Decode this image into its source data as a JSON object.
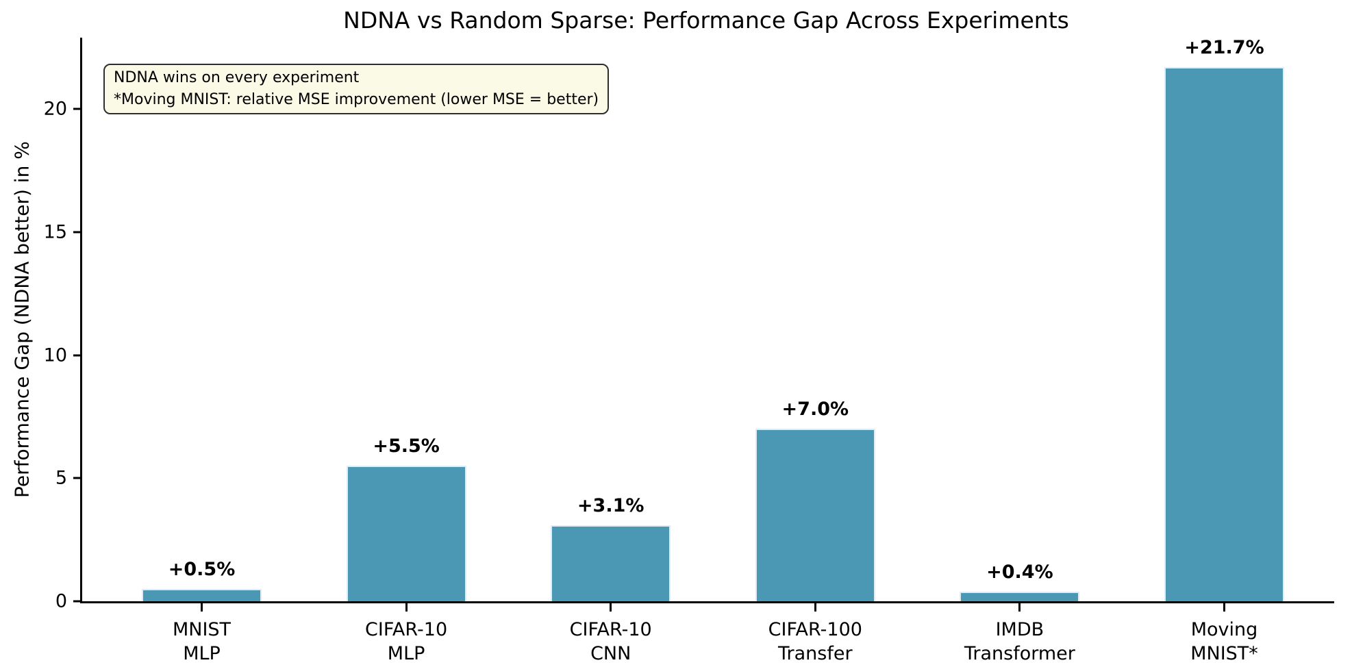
{
  "chart_data": {
    "type": "bar",
    "title": "NDNA vs Random Sparse: Performance Gap Across Experiments",
    "ylabel": "Performance Gap (NDNA better) in %",
    "xlabel": "",
    "categories": [
      "MNIST MLP",
      "CIFAR-10 MLP",
      "CIFAR-10 CNN",
      "CIFAR-100 Transfer",
      "IMDB Transformer",
      "Moving MNIST*"
    ],
    "category_lines": [
      [
        "MNIST",
        "MLP"
      ],
      [
        "CIFAR-10",
        "MLP"
      ],
      [
        "CIFAR-10",
        "CNN"
      ],
      [
        "CIFAR-100",
        "Transfer"
      ],
      [
        "IMDB",
        "Transformer"
      ],
      [
        "Moving",
        "MNIST*"
      ]
    ],
    "values": [
      0.5,
      5.5,
      3.1,
      7.0,
      0.4,
      21.7
    ],
    "bar_labels": [
      "+0.5%",
      "+5.5%",
      "+3.1%",
      "+7.0%",
      "+0.4%",
      "+21.7%"
    ],
    "yticks": [
      0,
      5,
      10,
      15,
      20
    ],
    "ylim": [
      0,
      22.9
    ],
    "grid": false,
    "legend": null,
    "colors": {
      "bar_fill": "#4B98B4",
      "bar_edge": "#DFECF5",
      "axis": "#000000",
      "annotation_bg": "#FAFAE6",
      "annotation_border": "#2E2E2E"
    },
    "annotation": {
      "line1": "NDNA wins on every experiment",
      "line2": "*Moving MNIST: relative MSE improvement (lower MSE = better)"
    }
  }
}
